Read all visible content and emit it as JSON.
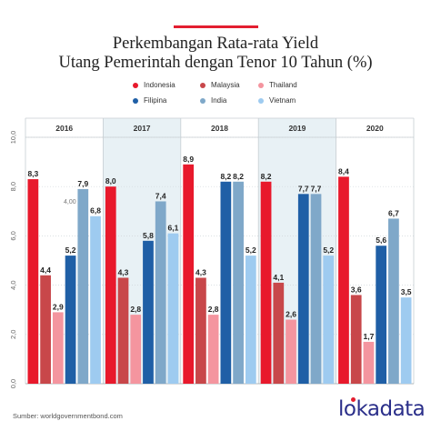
{
  "title_line1": "Perkembangan Rata-rata Yield",
  "title_line2": "Utang Pemerintah dengan Tenor 10 Tahun (%)",
  "source": "Sumber: worldgovernmentbond.com",
  "brand": "lokadata",
  "colors": {
    "accent": "#e31e30",
    "Indonesia": "#e8192c",
    "Malaysia": "#c8474a",
    "Thailand": "#f4959f",
    "Filipina": "#1f5fa6",
    "India": "#7fa8c9",
    "Vietnam": "#9ecbf0",
    "shaded_band": "#e8f1f5"
  },
  "chart_data": {
    "type": "bar",
    "categories": [
      "2016",
      "2017",
      "2018",
      "2019",
      "2020"
    ],
    "series": [
      {
        "name": "Indonesia",
        "values": [
          8.3,
          8.0,
          8.9,
          8.2,
          8.4
        ],
        "labels": [
          "8,3",
          "8,0",
          "8,9",
          "8,2",
          "8,4"
        ]
      },
      {
        "name": "Malaysia",
        "values": [
          4.4,
          4.3,
          4.3,
          4.1,
          3.6
        ],
        "labels": [
          "4,4",
          "4,3",
          "4,3",
          "4,1",
          "3,6"
        ]
      },
      {
        "name": "Thailand",
        "values": [
          2.9,
          2.8,
          2.8,
          2.6,
          1.7
        ],
        "labels": [
          "2,9",
          "2,8",
          "2,8",
          "2,6",
          "1,7"
        ]
      },
      {
        "name": "Filipina",
        "values": [
          5.2,
          5.8,
          8.2,
          7.7,
          5.6
        ],
        "labels": [
          "5,2",
          "5,8",
          "8,2",
          "7,7",
          "5,6"
        ]
      },
      {
        "name": "India",
        "values": [
          7.9,
          7.4,
          8.2,
          7.7,
          6.7
        ],
        "labels": [
          "7,9",
          "7,4",
          "8,2",
          "7,7",
          "6,7"
        ]
      },
      {
        "name": "Vietnam",
        "values": [
          6.8,
          6.1,
          5.2,
          5.2,
          3.5
        ],
        "labels": [
          "6,8",
          "6,1",
          "5,2",
          "5,2",
          "3,5"
        ]
      }
    ],
    "annotations": [
      {
        "category": "2016",
        "text": "4,00"
      }
    ],
    "ylim": [
      0,
      10
    ],
    "yticks": [
      "0,0",
      "2,0",
      "4,0",
      "6,0",
      "8,0",
      "10,0"
    ],
    "grid": true,
    "legend": "top-center"
  }
}
